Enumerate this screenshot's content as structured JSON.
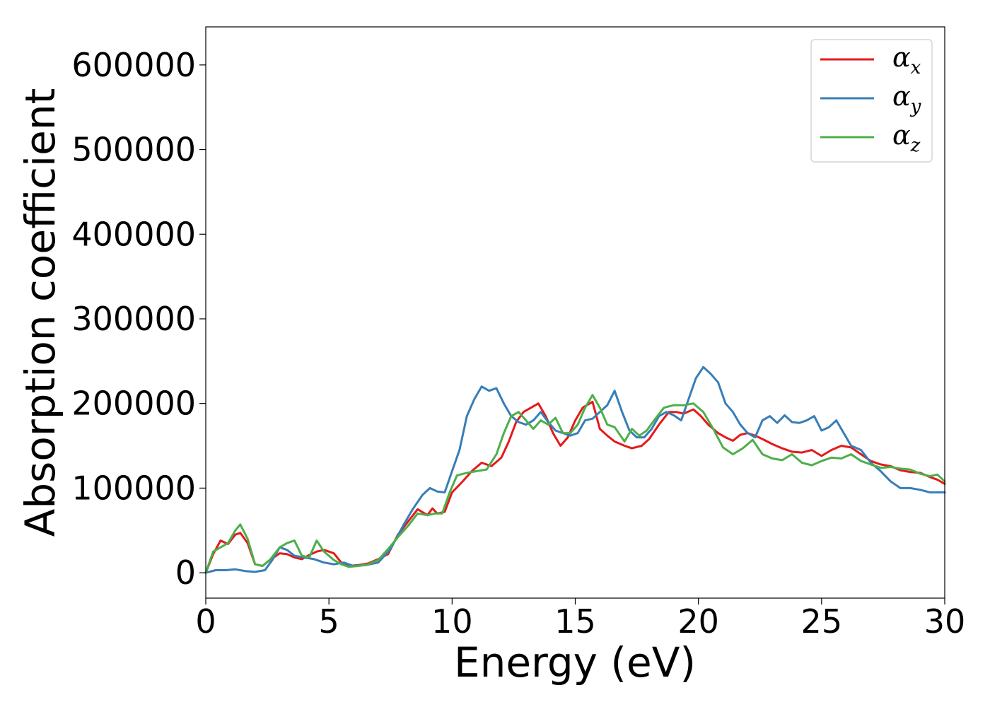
{
  "chart_data": {
    "type": "line",
    "xlabel": "Energy (eV)",
    "ylabel": "Absorption coefficient",
    "xlim": [
      0,
      30
    ],
    "ylim": [
      -30000,
      645000
    ],
    "xticks": [
      0,
      5,
      10,
      15,
      20,
      25,
      30
    ],
    "yticks": [
      0,
      100000,
      200000,
      300000,
      400000,
      500000,
      600000
    ],
    "grid": false,
    "legend_position": "top-right",
    "series": [
      {
        "name": "α",
        "sub": "x",
        "color": "#e41a1c",
        "x": [
          0,
          0.3,
          0.6,
          0.9,
          1.2,
          1.4,
          1.7,
          2.0,
          2.3,
          2.6,
          3.0,
          3.3,
          3.6,
          3.9,
          4.2,
          4.5,
          4.8,
          5.2,
          5.5,
          5.8,
          6.2,
          6.6,
          7.0,
          7.4,
          7.8,
          8.2,
          8.6,
          9.0,
          9.2,
          9.4,
          9.7,
          10.0,
          10.4,
          10.8,
          11.2,
          11.6,
          12.0,
          12.3,
          12.6,
          12.9,
          13.2,
          13.5,
          13.8,
          14.1,
          14.4,
          14.7,
          15.0,
          15.3,
          15.7,
          16.0,
          16.3,
          16.6,
          17.0,
          17.3,
          17.7,
          18.0,
          18.4,
          18.8,
          19.1,
          19.4,
          19.8,
          20.1,
          20.4,
          20.8,
          21.1,
          21.4,
          21.7,
          22.0,
          22.3,
          22.6,
          23.0,
          23.4,
          23.8,
          24.2,
          24.6,
          25.0,
          25.4,
          25.8,
          26.2,
          26.6,
          27.0,
          27.4,
          27.8,
          28.2,
          28.6,
          29.0,
          29.4,
          29.7,
          30.0
        ],
        "y": [
          0,
          22000,
          38000,
          34000,
          45000,
          47000,
          35000,
          10000,
          8000,
          15000,
          23000,
          22000,
          18000,
          16000,
          21000,
          25000,
          27000,
          23000,
          12000,
          8000,
          9000,
          11000,
          16000,
          22000,
          45000,
          60000,
          75000,
          68000,
          76000,
          70000,
          72000,
          95000,
          107000,
          120000,
          130000,
          126000,
          136000,
          155000,
          178000,
          190000,
          195000,
          200000,
          185000,
          165000,
          150000,
          160000,
          180000,
          195000,
          202000,
          170000,
          162000,
          155000,
          150000,
          147000,
          150000,
          158000,
          175000,
          190000,
          190000,
          188000,
          193000,
          185000,
          175000,
          165000,
          160000,
          156000,
          163000,
          165000,
          162000,
          158000,
          152000,
          147000,
          143000,
          142000,
          145000,
          138000,
          145000,
          150000,
          148000,
          140000,
          132000,
          128000,
          126000,
          121000,
          119000,
          118000,
          113000,
          110000,
          105000
        ]
      },
      {
        "name": "α",
        "sub": "y",
        "color": "#377eb8",
        "x": [
          0,
          0.4,
          0.8,
          1.2,
          1.6,
          2.0,
          2.4,
          2.7,
          3.0,
          3.3,
          3.6,
          4.0,
          4.4,
          4.8,
          5.2,
          5.6,
          6.0,
          6.5,
          7.0,
          7.5,
          8.0,
          8.4,
          8.8,
          9.1,
          9.4,
          9.7,
          10.0,
          10.3,
          10.6,
          10.9,
          11.2,
          11.5,
          11.8,
          12.1,
          12.4,
          12.7,
          13.0,
          13.3,
          13.6,
          13.9,
          14.2,
          14.5,
          14.8,
          15.1,
          15.4,
          15.7,
          16.0,
          16.3,
          16.6,
          16.9,
          17.2,
          17.5,
          17.8,
          18.1,
          18.4,
          18.7,
          19.0,
          19.3,
          19.6,
          19.9,
          20.2,
          20.5,
          20.8,
          21.1,
          21.4,
          21.7,
          22.0,
          22.3,
          22.6,
          22.9,
          23.2,
          23.5,
          23.8,
          24.1,
          24.4,
          24.7,
          25.0,
          25.3,
          25.6,
          25.9,
          26.2,
          26.6,
          27.0,
          27.4,
          27.8,
          28.2,
          28.6,
          29.0,
          29.4,
          29.7,
          30.0
        ],
        "y": [
          0,
          3000,
          3000,
          4000,
          2000,
          1000,
          3000,
          15000,
          30000,
          27000,
          20000,
          18000,
          16000,
          12000,
          10000,
          12000,
          8000,
          9000,
          12000,
          28000,
          55000,
          75000,
          92000,
          100000,
          96000,
          95000,
          120000,
          145000,
          185000,
          205000,
          220000,
          215000,
          218000,
          200000,
          185000,
          178000,
          175000,
          180000,
          190000,
          178000,
          168000,
          165000,
          162000,
          165000,
          180000,
          182000,
          190000,
          198000,
          215000,
          190000,
          168000,
          160000,
          160000,
          170000,
          185000,
          190000,
          186000,
          180000,
          205000,
          230000,
          243000,
          235000,
          225000,
          200000,
          190000,
          175000,
          165000,
          160000,
          180000,
          185000,
          177000,
          186000,
          178000,
          177000,
          180000,
          185000,
          168000,
          172000,
          180000,
          165000,
          150000,
          145000,
          130000,
          120000,
          108000,
          100000,
          100000,
          98000,
          95000,
          95000,
          95000
        ]
      },
      {
        "name": "α",
        "sub": "z",
        "color": "#4daf4a",
        "x": [
          0,
          0.3,
          0.6,
          0.9,
          1.2,
          1.4,
          1.7,
          2.0,
          2.3,
          2.6,
          3.0,
          3.3,
          3.6,
          3.9,
          4.2,
          4.5,
          4.8,
          5.2,
          5.5,
          5.8,
          6.2,
          6.6,
          7.0,
          7.4,
          7.8,
          8.2,
          8.6,
          9.0,
          9.3,
          9.6,
          9.9,
          10.2,
          10.6,
          11.0,
          11.4,
          11.8,
          12.1,
          12.4,
          12.7,
          13.0,
          13.3,
          13.6,
          13.9,
          14.2,
          14.5,
          14.8,
          15.1,
          15.4,
          15.7,
          16.0,
          16.3,
          16.6,
          17.0,
          17.3,
          17.6,
          17.9,
          18.2,
          18.6,
          19.0,
          19.4,
          19.8,
          20.2,
          20.6,
          21.0,
          21.4,
          21.8,
          22.2,
          22.6,
          23.0,
          23.4,
          23.8,
          24.2,
          24.6,
          25.0,
          25.4,
          25.8,
          26.2,
          26.6,
          27.0,
          27.4,
          27.8,
          28.2,
          28.6,
          29.0,
          29.4,
          29.7,
          30.0
        ],
        "y": [
          0,
          25000,
          30000,
          35000,
          50000,
          57000,
          40000,
          10000,
          8000,
          15000,
          30000,
          35000,
          38000,
          20000,
          18000,
          38000,
          25000,
          15000,
          10000,
          7000,
          8000,
          10000,
          15000,
          28000,
          42000,
          55000,
          70000,
          68000,
          70000,
          70000,
          95000,
          115000,
          118000,
          120000,
          122000,
          140000,
          165000,
          185000,
          190000,
          180000,
          170000,
          180000,
          175000,
          183000,
          165000,
          165000,
          175000,
          195000,
          210000,
          195000,
          175000,
          172000,
          155000,
          170000,
          162000,
          168000,
          180000,
          195000,
          198000,
          198000,
          200000,
          190000,
          170000,
          148000,
          140000,
          147000,
          157000,
          140000,
          135000,
          133000,
          140000,
          130000,
          127000,
          132000,
          136000,
          135000,
          140000,
          132000,
          128000,
          124000,
          125000,
          123000,
          122000,
          117000,
          114000,
          116000,
          108000
        ]
      }
    ]
  }
}
